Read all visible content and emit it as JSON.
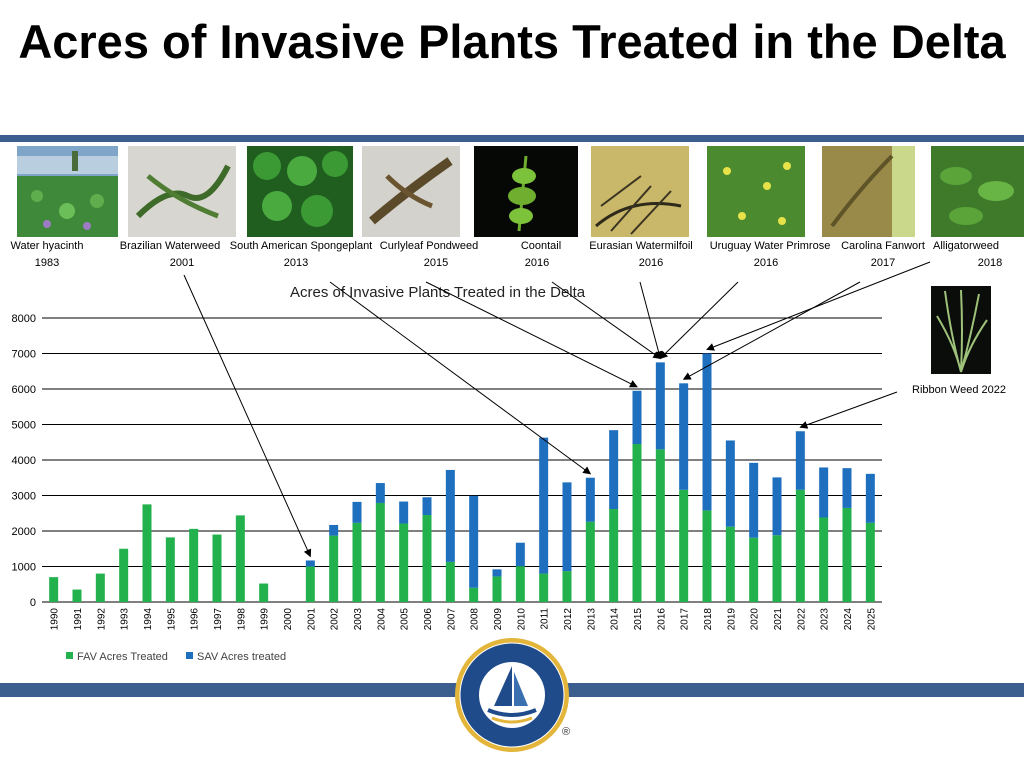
{
  "slide": {
    "title": "Acres of Invasive Plants Treated in the Delta"
  },
  "plants": [
    {
      "name": "Water hyacinth",
      "year": "1983",
      "icon": "water-hyacinth-photo"
    },
    {
      "name": "Brazilian Waterweed",
      "year": "2001",
      "icon": "brazilian-waterweed-photo"
    },
    {
      "name": "South American Spongeplant",
      "year": "2013",
      "icon": "spongeplant-photo"
    },
    {
      "name": "Curlyleaf Pondweed",
      "year": "2015",
      "icon": "curlyleaf-pondweed-photo"
    },
    {
      "name": "Coontail",
      "year": "2016",
      "icon": "coontail-photo"
    },
    {
      "name": "Eurasian Watermilfoil",
      "year": "2016",
      "icon": "watermilfoil-photo"
    },
    {
      "name": "Uruguay Water Primrose",
      "year": "2016",
      "icon": "water-primrose-photo"
    },
    {
      "name": "Carolina Fanwort",
      "year": "2017",
      "icon": "fanwort-photo"
    },
    {
      "name": "Alligatorweed",
      "year": "2018",
      "icon": "alligatorweed-photo"
    }
  ],
  "ribbon": {
    "label": "Ribbon Weed 2022",
    "icon": "ribbon-weed-photo"
  },
  "colors": {
    "fav": "#22b14c",
    "sav": "#1f6fbf",
    "band": "#3c5e8e"
  },
  "chart_data": {
    "type": "bar",
    "stacked": true,
    "title": "Acres of Invasive Plants Treated in the Delta",
    "categories": [
      "1990",
      "1991",
      "1992",
      "1993",
      "1994",
      "1995",
      "1996",
      "1997",
      "1998",
      "1999",
      "2000",
      "2001",
      "2002",
      "2003",
      "2004",
      "2005",
      "2006",
      "2007",
      "2008",
      "2009",
      "2010",
      "2011",
      "2012",
      "2013",
      "2014",
      "2015",
      "2016",
      "2017",
      "2018",
      "2019",
      "2020",
      "2021",
      "2022",
      "2023",
      "2024",
      "2025"
    ],
    "series": [
      {
        "name": "FAV Acres Treated",
        "color": "#22b14c",
        "values": [
          700,
          350,
          800,
          1500,
          2750,
          1820,
          2060,
          1900,
          2440,
          520,
          0,
          1000,
          1870,
          2230,
          2790,
          2210,
          2450,
          1130,
          400,
          720,
          1010,
          800,
          870,
          2260,
          2620,
          4450,
          4300,
          3160,
          2580,
          2120,
          1810,
          1880,
          3160,
          2380,
          2650,
          2230
        ]
      },
      {
        "name": "SAV Acres treated",
        "color": "#1f6fbf",
        "values": [
          0,
          0,
          0,
          0,
          0,
          0,
          0,
          0,
          0,
          0,
          0,
          170,
          300,
          590,
          560,
          620,
          500,
          2590,
          2590,
          200,
          660,
          3830,
          2500,
          1240,
          2220,
          1500,
          2450,
          3000,
          4420,
          2430,
          2110,
          1630,
          1650,
          1410,
          1120,
          1380
        ]
      }
    ],
    "ylim": [
      0,
      8000
    ],
    "yticks": [
      0,
      1000,
      2000,
      3000,
      4000,
      5000,
      6000,
      7000,
      8000
    ],
    "grid": true,
    "legend": "bottom-left"
  }
}
